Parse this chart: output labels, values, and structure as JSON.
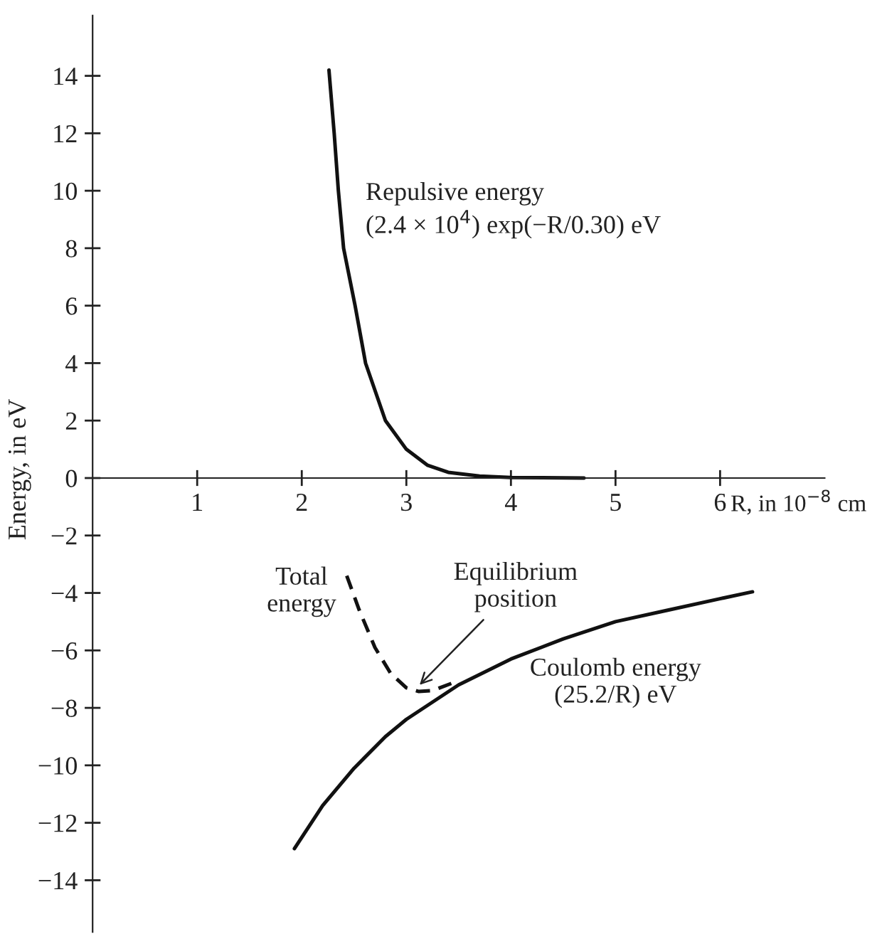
{
  "chart_data": {
    "type": "line",
    "xlabel": "R, in 10$^{−8}$ cm",
    "ylabel": "Energy, in eV",
    "xlim": [
      0,
      7
    ],
    "ylim": [
      -15.8,
      16.1
    ],
    "xticks": [
      1,
      2,
      3,
      4,
      5,
      6
    ],
    "yticks": [
      -14,
      -12,
      -10,
      -8,
      -6,
      -4,
      -2,
      0,
      2,
      4,
      6,
      8,
      10,
      12,
      14
    ],
    "series": [
      {
        "color": "#111111",
        "line_style": "solid",
        "x": [
          2.26,
          2.31,
          2.35,
          2.4,
          2.51,
          2.61,
          2.8,
          3.0,
          3.2,
          3.4,
          3.7,
          4.0,
          4.7
        ],
        "values": [
          14.2,
          12,
          10,
          8,
          6,
          4,
          2,
          1.0,
          0.45,
          0.2,
          0.07,
          0.02,
          0.0
        ]
      },
      {
        "color": "#111111",
        "line_style": "solid",
        "x": [
          1.93,
          2.2,
          2.5,
          2.8,
          3.0,
          3.5,
          4.0,
          4.5,
          5.0,
          5.5,
          6.0,
          6.31
        ],
        "values": [
          -12.9,
          -11.4,
          -10.1,
          -9.0,
          -8.4,
          -7.2,
          -6.3,
          -5.6,
          -5.0,
          -4.6,
          -4.2,
          -3.96
        ]
      },
      {
        "color": "#111111",
        "line_style": "dashed",
        "x": [
          2.43,
          2.55,
          2.7,
          2.85,
          3.0,
          3.12,
          3.25,
          3.43
        ],
        "values": [
          -3.4,
          -4.6,
          -5.9,
          -6.8,
          -7.3,
          -7.43,
          -7.4,
          -7.15
        ]
      }
    ],
    "annotations": [
      "Repulsive energy\n(2.4 × 10$^{4}$) exp(−R/0.30) eV",
      "Total\nenergy",
      {
        "text": "Equilibrium\nposition",
        "x": 3.1,
        "y": -7.3
      },
      "Coulomb energy\n(25.2/R) eV"
    ]
  }
}
